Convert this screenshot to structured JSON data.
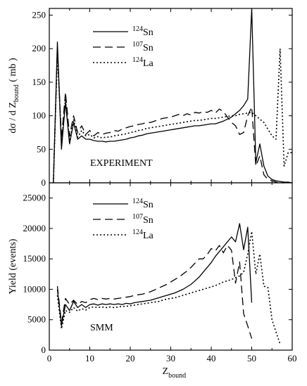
{
  "chart_data": [
    {
      "type": "line",
      "panel": "top",
      "annotation": "EXPERIMENT",
      "ylabel_parts": {
        "main": "dσ / d Z",
        "sub": "bound",
        "unit": "( mb )"
      },
      "xlim": [
        0,
        60
      ],
      "ylim": [
        0,
        260
      ],
      "xticks": [
        0,
        10,
        20,
        30,
        40,
        50,
        60
      ],
      "yticks": [
        0,
        50,
        100,
        150,
        200,
        250
      ],
      "legend_position": "top-left",
      "series": [
        {
          "name": "124Sn",
          "mass": "124",
          "element": "Sn",
          "style": "solid",
          "color": "#000000",
          "x": [
            1,
            2,
            3,
            4,
            5,
            6,
            7,
            8,
            9,
            10,
            11,
            12,
            13,
            14,
            15,
            16,
            17,
            18,
            19,
            20,
            21,
            22,
            23,
            24,
            25,
            26,
            27,
            28,
            29,
            30,
            31,
            32,
            33,
            34,
            35,
            36,
            37,
            38,
            39,
            40,
            41,
            42,
            43,
            44,
            45,
            46,
            47,
            48,
            49,
            50,
            51,
            52,
            53,
            54,
            55,
            56,
            57,
            58,
            59,
            60
          ],
          "y": [
            0,
            210,
            50,
            120,
            58,
            90,
            65,
            70,
            65,
            65,
            63,
            62,
            62,
            61,
            62,
            62,
            63,
            64,
            65,
            67,
            68,
            70,
            71,
            73,
            74,
            75,
            76,
            77,
            78,
            79,
            80,
            81,
            82,
            83,
            84,
            85,
            85,
            86,
            87,
            88,
            88,
            90,
            92,
            95,
            98,
            103,
            108,
            115,
            125,
            260,
            30,
            58,
            25,
            10,
            5,
            3,
            2,
            1,
            1,
            0
          ]
        },
        {
          "name": "107Sn",
          "mass": "107",
          "element": "Sn",
          "style": "dashed",
          "color": "#000000",
          "x": [
            1,
            2,
            3,
            4,
            5,
            6,
            7,
            8,
            9,
            10,
            11,
            12,
            13,
            14,
            15,
            16,
            17,
            18,
            19,
            20,
            21,
            22,
            23,
            24,
            25,
            26,
            27,
            28,
            29,
            30,
            31,
            32,
            33,
            34,
            35,
            36,
            37,
            38,
            39,
            40,
            41,
            42,
            43,
            44,
            45,
            46,
            47,
            48,
            49,
            50,
            51,
            52,
            53,
            54,
            55,
            56,
            57,
            58
          ],
          "y": [
            0,
            200,
            65,
            135,
            70,
            100,
            75,
            85,
            72,
            78,
            70,
            75,
            72,
            74,
            75,
            78,
            77,
            80,
            82,
            84,
            85,
            87,
            88,
            90,
            90,
            92,
            94,
            96,
            97,
            98,
            100,
            102,
            100,
            103,
            101,
            105,
            104,
            106,
            105,
            108,
            104,
            110,
            106,
            98,
            90,
            85,
            72,
            75,
            100,
            113,
            25,
            40,
            12,
            5,
            3,
            1,
            0,
            0
          ]
        },
        {
          "name": "124La",
          "mass": "124",
          "element": "La",
          "style": "dotted",
          "color": "#000000",
          "x": [
            1,
            2,
            3,
            4,
            5,
            6,
            7,
            8,
            9,
            10,
            11,
            12,
            13,
            14,
            15,
            16,
            17,
            18,
            19,
            20,
            21,
            22,
            23,
            24,
            25,
            26,
            27,
            28,
            29,
            30,
            31,
            32,
            33,
            34,
            35,
            36,
            37,
            38,
            39,
            40,
            41,
            42,
            43,
            44,
            45,
            46,
            47,
            48,
            49,
            50,
            51,
            52,
            53,
            54,
            55,
            56,
            57,
            58,
            59,
            60
          ],
          "y": [
            0,
            195,
            60,
            125,
            62,
            95,
            68,
            78,
            70,
            72,
            67,
            69,
            67,
            68,
            68,
            70,
            71,
            72,
            73,
            75,
            76,
            78,
            79,
            81,
            82,
            83,
            84,
            85,
            86,
            87,
            88,
            89,
            90,
            91,
            92,
            93,
            93,
            94,
            95,
            96,
            96,
            97,
            98,
            99,
            100,
            100,
            102,
            103,
            104,
            105,
            100,
            95,
            90,
            80,
            70,
            65,
            200,
            25,
            45,
            45
          ]
        }
      ]
    },
    {
      "type": "line",
      "panel": "bottom",
      "annotation": "SMM",
      "ylabel": "Yield (events)",
      "xlabel_parts": {
        "main": "Z",
        "sub": "bound"
      },
      "xlim": [
        0,
        60
      ],
      "ylim": [
        0,
        27500
      ],
      "xticks": [
        0,
        10,
        20,
        30,
        40,
        50,
        60
      ],
      "yticks": [
        0,
        5000,
        10000,
        15000,
        20000,
        25000
      ],
      "legend_position": "top-left",
      "series": [
        {
          "name": "124Sn",
          "mass": "124",
          "element": "Sn",
          "style": "solid",
          "color": "#000000",
          "x": [
            2,
            3,
            4,
            5,
            6,
            7,
            8,
            9,
            10,
            11,
            12,
            13,
            14,
            15,
            16,
            17,
            18,
            19,
            20,
            21,
            22,
            23,
            24,
            25,
            26,
            27,
            28,
            29,
            30,
            31,
            32,
            33,
            34,
            35,
            36,
            37,
            38,
            39,
            40,
            41,
            42,
            43,
            44,
            45,
            46,
            47,
            48,
            49,
            50
          ],
          "y": [
            10000,
            4000,
            7500,
            6500,
            8000,
            7000,
            7500,
            7000,
            7500,
            7600,
            7400,
            7600,
            7500,
            7600,
            7500,
            7600,
            7500,
            7700,
            7600,
            7800,
            7900,
            8000,
            8100,
            8200,
            8400,
            8600,
            8800,
            9000,
            9200,
            9400,
            9700,
            10000,
            10400,
            10800,
            11400,
            12000,
            12800,
            13600,
            14400,
            15400,
            16200,
            17000,
            17800,
            18600,
            17800,
            20800,
            16500,
            20200,
            7800
          ]
        },
        {
          "name": "107Sn",
          "mass": "107",
          "element": "Sn",
          "style": "dashed",
          "color": "#000000",
          "x": [
            2,
            3,
            4,
            5,
            6,
            7,
            8,
            9,
            10,
            11,
            12,
            13,
            14,
            15,
            16,
            17,
            18,
            19,
            20,
            21,
            22,
            23,
            24,
            25,
            26,
            27,
            28,
            29,
            30,
            31,
            32,
            33,
            34,
            35,
            36,
            37,
            38,
            39,
            40,
            41,
            42,
            43,
            44,
            45,
            46,
            47,
            48,
            49,
            50
          ],
          "y": [
            10500,
            4500,
            8500,
            7500,
            8200,
            7500,
            8000,
            7800,
            8300,
            8500,
            8300,
            8500,
            8400,
            8500,
            8400,
            8500,
            8600,
            8700,
            8800,
            9000,
            9100,
            9200,
            9400,
            9600,
            9900,
            10200,
            10500,
            10800,
            11200,
            11600,
            12000,
            12500,
            13000,
            13600,
            14300,
            15000,
            15000,
            15700,
            16700,
            16300,
            17200,
            16000,
            17200,
            16400,
            11000,
            14500,
            6000,
            4000,
            1900
          ]
        },
        {
          "name": "124La",
          "mass": "124",
          "element": "La",
          "style": "dotted",
          "color": "#000000",
          "x": [
            2,
            3,
            4,
            5,
            6,
            7,
            8,
            9,
            10,
            11,
            12,
            13,
            14,
            15,
            16,
            17,
            18,
            19,
            20,
            21,
            22,
            23,
            24,
            25,
            26,
            27,
            28,
            29,
            30,
            31,
            32,
            33,
            34,
            35,
            36,
            37,
            38,
            39,
            40,
            41,
            42,
            43,
            44,
            45,
            46,
            47,
            48,
            49,
            50,
            51,
            52,
            53,
            54,
            55,
            56,
            57
          ],
          "y": [
            9000,
            3500,
            6500,
            6200,
            7000,
            6400,
            6800,
            6600,
            7000,
            7100,
            7000,
            7100,
            7000,
            7100,
            7000,
            7100,
            7200,
            7200,
            7300,
            7400,
            7500,
            7600,
            7700,
            7800,
            7900,
            8000,
            8200,
            8400,
            8500,
            8600,
            8800,
            9000,
            9200,
            9400,
            9600,
            9800,
            10000,
            10200,
            10400,
            10600,
            10900,
            11200,
            11400,
            11600,
            11900,
            12200,
            12800,
            15800,
            19500,
            12500,
            15800,
            10500,
            10300,
            5000,
            3000,
            1000
          ]
        }
      ]
    }
  ]
}
